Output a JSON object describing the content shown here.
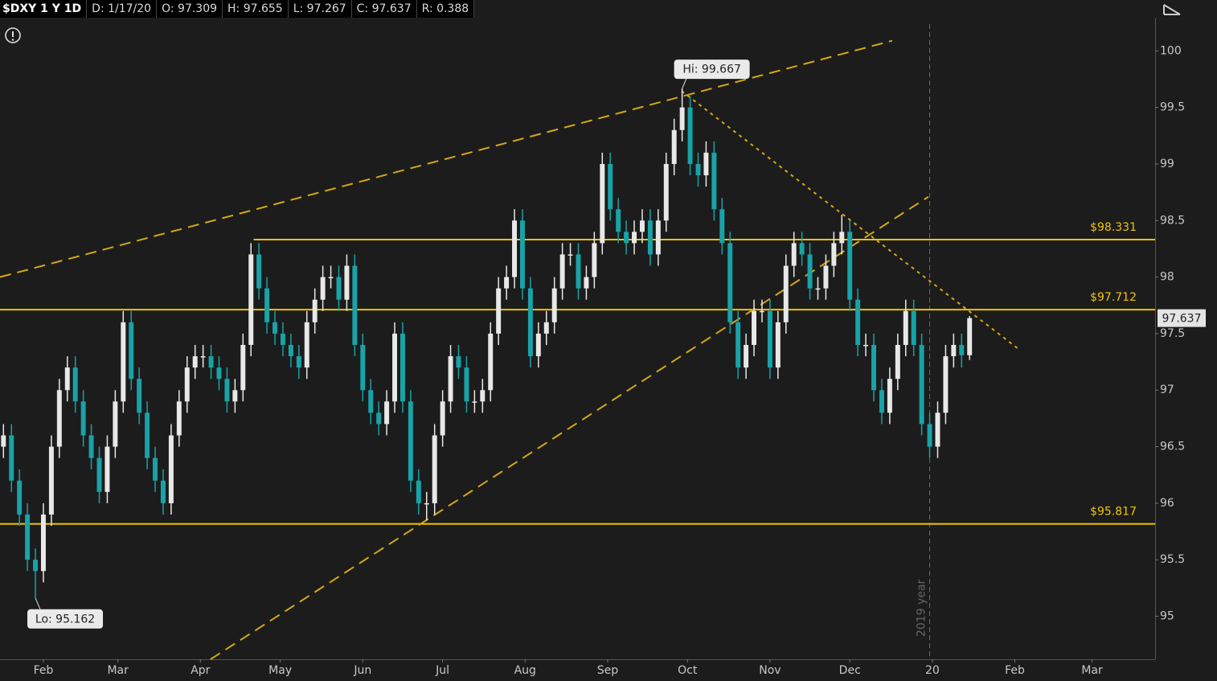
{
  "chart_data": {
    "type": "candlestick",
    "title": "$DXY 1 Y 1D",
    "header_fields": [
      "D: 1/17/20",
      "O: 97.309",
      "H: 97.655",
      "L: 97.267",
      "C: 97.637",
      "R: 0.388"
    ],
    "up_color": "#e8e8e8",
    "down_color": "#18a3a8",
    "xlim": [
      14.7,
      448.7
    ],
    "ylim": [
      94.62,
      100.45
    ],
    "xticks": [
      {
        "value": 31,
        "label": "Feb"
      },
      {
        "value": 59,
        "label": "Mar"
      },
      {
        "value": 90,
        "label": "Apr"
      },
      {
        "value": 120,
        "label": "May"
      },
      {
        "value": 151,
        "label": "Jun"
      },
      {
        "value": 181,
        "label": "Jul"
      },
      {
        "value": 212,
        "label": "Aug"
      },
      {
        "value": 243,
        "label": "Sep"
      },
      {
        "value": 273,
        "label": "Oct"
      },
      {
        "value": 304,
        "label": "Nov"
      },
      {
        "value": 334,
        "label": "Dec"
      },
      {
        "value": 365,
        "label": "20"
      },
      {
        "value": 396,
        "label": "Feb"
      },
      {
        "value": 425,
        "label": "Mar"
      }
    ],
    "yticks": [
      95,
      95.5,
      96,
      96.5,
      97,
      97.5,
      98,
      98.5,
      99,
      99.5,
      100
    ],
    "x": [
      16,
      19,
      22,
      25,
      28,
      31,
      34,
      37,
      40,
      43,
      46,
      49,
      52,
      55,
      58,
      61,
      64,
      67,
      70,
      73,
      76,
      79,
      82,
      85,
      88,
      91,
      94,
      97,
      100,
      103,
      106,
      109,
      112,
      115,
      118,
      121,
      124,
      127,
      130,
      133,
      136,
      139,
      142,
      145,
      148,
      151,
      154,
      157,
      160,
      163,
      166,
      169,
      172,
      175,
      178,
      181,
      184,
      187,
      190,
      193,
      196,
      199,
      202,
      205,
      208,
      211,
      214,
      217,
      220,
      223,
      226,
      229,
      232,
      235,
      238,
      241,
      244,
      247,
      250,
      253,
      256,
      259,
      262,
      265,
      268,
      271,
      274,
      277,
      280,
      283,
      286,
      289,
      292,
      295,
      298,
      301,
      304,
      307,
      310,
      313,
      316,
      319,
      322,
      325,
      328,
      331,
      334,
      337,
      340,
      343,
      346,
      349,
      352,
      355,
      358,
      361,
      364,
      367,
      370,
      373,
      376,
      379
    ],
    "open": [
      96.5,
      96.6,
      96.2,
      95.9,
      95.5,
      95.4,
      95.9,
      96.5,
      97.0,
      97.2,
      96.9,
      96.6,
      96.4,
      96.1,
      96.5,
      96.9,
      97.6,
      97.1,
      96.8,
      96.4,
      96.2,
      96.0,
      96.6,
      96.9,
      97.2,
      97.3,
      97.3,
      97.2,
      97.1,
      96.9,
      97.0,
      97.4,
      98.2,
      97.9,
      97.6,
      97.5,
      97.4,
      97.3,
      97.2,
      97.6,
      97.8,
      98.0,
      98.0,
      97.8,
      98.1,
      97.4,
      97.0,
      96.8,
      96.7,
      96.9,
      97.5,
      96.9,
      96.2,
      96.0,
      96.0,
      96.6,
      96.9,
      97.3,
      97.2,
      96.9,
      96.9,
      97.0,
      97.5,
      97.9,
      98.0,
      98.5,
      97.9,
      97.3,
      97.5,
      97.6,
      97.9,
      98.2,
      98.2,
      97.9,
      98.0,
      98.3,
      99.0,
      98.6,
      98.4,
      98.3,
      98.4,
      98.5,
      98.2,
      98.5,
      99.0,
      99.3,
      99.5,
      99.0,
      98.9,
      99.1,
      98.6,
      98.3,
      97.6,
      97.2,
      97.4,
      97.7,
      97.7,
      97.2,
      97.6,
      98.1,
      98.3,
      98.2,
      97.9,
      97.9,
      98.1,
      98.3,
      98.4,
      97.8,
      97.4,
      97.4,
      97.0,
      96.8,
      97.1,
      97.4,
      97.7,
      97.4,
      96.7,
      96.5,
      96.8,
      97.3,
      97.4,
      97.309
    ],
    "high": [
      96.7,
      96.7,
      96.3,
      96.0,
      95.6,
      96.0,
      96.6,
      97.1,
      97.3,
      97.3,
      97.0,
      96.7,
      96.5,
      96.6,
      97.0,
      97.7,
      97.7,
      97.2,
      96.9,
      96.5,
      96.3,
      96.7,
      97.0,
      97.3,
      97.4,
      97.4,
      97.4,
      97.3,
      97.2,
      97.1,
      97.5,
      98.3,
      98.3,
      98.0,
      97.7,
      97.6,
      97.5,
      97.4,
      97.7,
      97.9,
      98.1,
      98.1,
      98.1,
      98.2,
      98.2,
      97.5,
      97.1,
      96.9,
      97.0,
      97.6,
      97.6,
      97.0,
      96.3,
      96.1,
      96.7,
      97.0,
      97.4,
      97.4,
      97.3,
      97.0,
      97.1,
      97.6,
      98.0,
      98.1,
      98.6,
      98.6,
      98.0,
      97.6,
      97.7,
      98.0,
      98.3,
      98.3,
      98.3,
      98.1,
      98.4,
      99.1,
      99.1,
      98.7,
      98.5,
      98.5,
      98.6,
      98.6,
      98.6,
      99.1,
      99.4,
      99.667,
      99.6,
      99.1,
      99.2,
      99.2,
      98.7,
      98.4,
      97.7,
      97.5,
      97.8,
      97.8,
      97.8,
      97.7,
      98.2,
      98.4,
      98.4,
      98.3,
      98.0,
      98.2,
      98.4,
      98.55,
      98.5,
      97.9,
      97.5,
      97.5,
      97.1,
      97.2,
      97.5,
      97.8,
      97.8,
      97.5,
      96.8,
      96.9,
      97.4,
      97.5,
      97.5,
      97.655
    ],
    "low": [
      96.4,
      96.1,
      95.8,
      95.4,
      95.162,
      95.3,
      95.8,
      96.4,
      96.9,
      96.8,
      96.5,
      96.3,
      96.0,
      96.0,
      96.4,
      96.8,
      97.0,
      96.7,
      96.3,
      96.1,
      95.9,
      95.9,
      96.5,
      96.8,
      97.1,
      97.2,
      97.1,
      97.0,
      96.8,
      96.8,
      96.9,
      97.3,
      97.8,
      97.5,
      97.4,
      97.3,
      97.2,
      97.1,
      97.1,
      97.5,
      97.7,
      97.9,
      97.7,
      97.7,
      97.3,
      96.9,
      96.7,
      96.6,
      96.6,
      96.8,
      96.8,
      96.1,
      95.9,
      95.85,
      95.9,
      96.5,
      96.8,
      97.1,
      96.8,
      96.8,
      96.8,
      96.9,
      97.4,
      97.8,
      97.9,
      97.8,
      97.2,
      97.2,
      97.4,
      97.5,
      97.8,
      98.1,
      97.8,
      97.8,
      97.9,
      98.2,
      98.5,
      98.3,
      98.2,
      98.2,
      98.3,
      98.1,
      98.1,
      98.4,
      98.9,
      99.2,
      98.9,
      98.8,
      98.8,
      98.5,
      98.2,
      97.5,
      97.1,
      97.1,
      97.3,
      97.6,
      97.1,
      97.1,
      97.5,
      98.0,
      98.1,
      97.8,
      97.8,
      97.8,
      98.0,
      98.2,
      97.7,
      97.3,
      97.3,
      96.9,
      96.7,
      96.7,
      97.0,
      97.3,
      97.3,
      96.6,
      96.4,
      96.4,
      96.7,
      97.2,
      97.2,
      97.267
    ],
    "close": [
      96.6,
      96.2,
      95.9,
      95.5,
      95.4,
      95.9,
      96.5,
      97.0,
      97.2,
      96.9,
      96.6,
      96.4,
      96.1,
      96.5,
      96.9,
      97.6,
      97.1,
      96.8,
      96.4,
      96.2,
      96.0,
      96.6,
      96.9,
      97.2,
      97.3,
      97.3,
      97.2,
      97.1,
      96.9,
      97.0,
      97.4,
      98.2,
      97.9,
      97.6,
      97.5,
      97.4,
      97.3,
      97.2,
      97.6,
      97.8,
      98.0,
      98.0,
      97.8,
      98.1,
      97.4,
      97.0,
      96.8,
      96.7,
      96.9,
      97.5,
      96.9,
      96.2,
      96.0,
      96.0,
      96.6,
      96.9,
      97.3,
      97.2,
      96.9,
      96.9,
      97.0,
      97.5,
      97.9,
      98.0,
      98.5,
      97.9,
      97.3,
      97.5,
      97.6,
      97.9,
      98.2,
      98.2,
      97.9,
      98.0,
      98.3,
      99.0,
      98.6,
      98.4,
      98.3,
      98.4,
      98.5,
      98.2,
      98.5,
      99.0,
      99.3,
      99.5,
      99.0,
      98.9,
      99.1,
      98.6,
      98.3,
      97.6,
      97.2,
      97.4,
      97.7,
      97.7,
      97.2,
      97.6,
      98.1,
      98.3,
      98.2,
      97.9,
      97.9,
      98.1,
      98.3,
      98.4,
      97.8,
      97.4,
      97.4,
      97.0,
      96.8,
      97.1,
      97.4,
      97.7,
      97.4,
      96.7,
      96.5,
      96.8,
      97.3,
      97.4,
      97.309,
      97.637
    ],
    "hi_label": "Hi: 99.667",
    "lo_label": "Lo: 95.162",
    "levels_color": "#f2c400",
    "levels": [
      {
        "value": 98.331,
        "label": "$98.331",
        "from": 110
      },
      {
        "value": 97.712,
        "label": "$97.712"
      },
      {
        "value": 95.817,
        "label": "$95.817"
      }
    ],
    "trendlines": [
      {
        "x": [
          14.7,
          349.9
        ],
        "y": [
          98.0,
          100.09
        ],
        "style": "dashed"
      },
      {
        "x": [
          93.8,
          363.5
        ],
        "y": [
          94.62,
          98.71
        ],
        "style": "dashed"
      },
      {
        "x": [
          270.8,
          397.6
        ],
        "y": [
          99.645,
          97.36
        ],
        "style": "dotted"
      }
    ],
    "separator": {
      "x": 364,
      "label": "2019 year"
    }
  }
}
